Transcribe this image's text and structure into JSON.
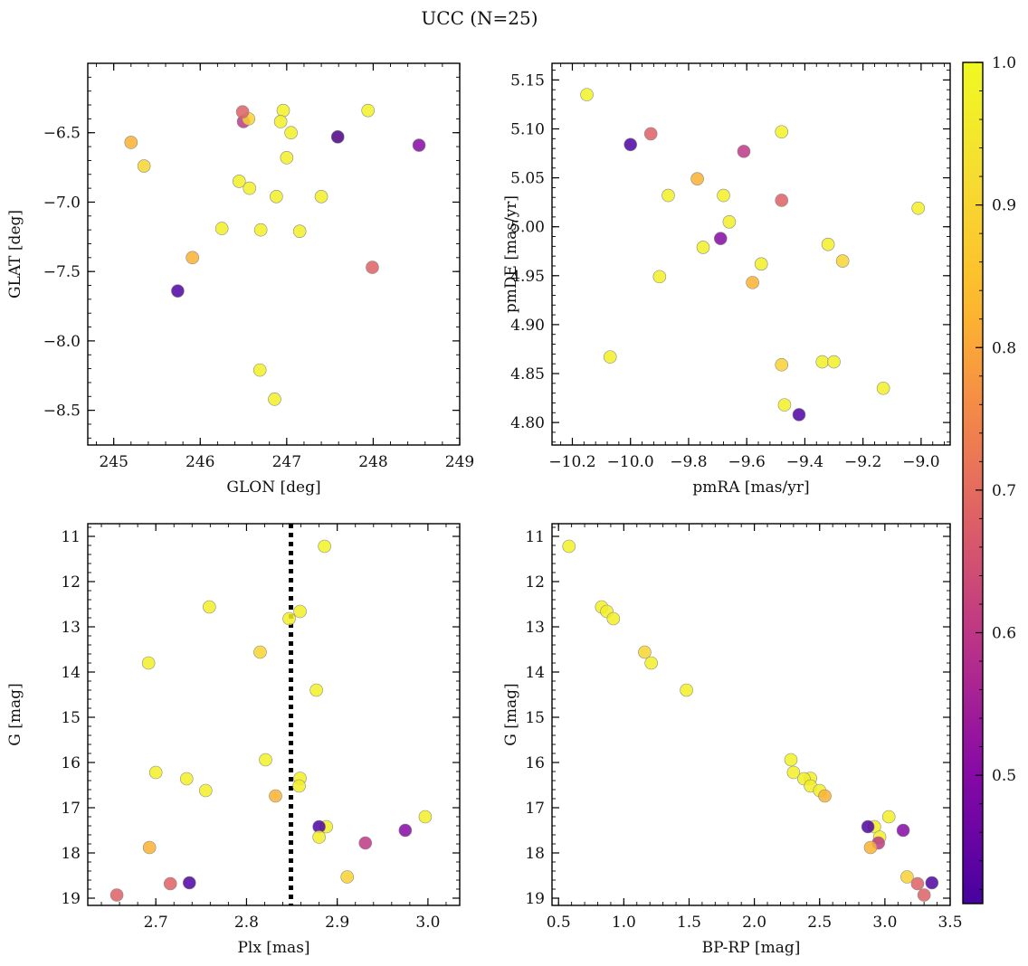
{
  "figure": {
    "title": "UCC (N=25)"
  },
  "chart_data": [
    {
      "type": "scatter",
      "xlabel": "GLON [deg]",
      "ylabel": "GLAT [deg]",
      "xlim": [
        244.7,
        249.0
      ],
      "ylim": [
        -6.0,
        -8.75
      ],
      "xticks": [
        245,
        246,
        247,
        248,
        249
      ],
      "yticks": [
        -6.5,
        -7.0,
        -7.5,
        -8.0,
        -8.5
      ],
      "xtick_labels": [
        "245",
        "246",
        "247",
        "248",
        "249"
      ],
      "ytick_labels": [
        "−6.5",
        "−7.0",
        "−7.5",
        "−8.0",
        "−8.5"
      ]
    },
    {
      "type": "scatter",
      "xlabel": "pmRA [mas/yr]",
      "ylabel": "pmDE [mas/yr]",
      "xlim": [
        -10.27,
        -8.9
      ],
      "ylim": [
        5.167,
        4.777
      ],
      "xticks": [
        -10.2,
        -10.0,
        -9.8,
        -9.6,
        -9.4,
        -9.2,
        -9.0
      ],
      "yticks": [
        5.15,
        5.1,
        5.05,
        5.0,
        4.95,
        4.9,
        4.85,
        4.8
      ],
      "xtick_labels": [
        "−10.2",
        "−10.0",
        "−9.8",
        "−9.6",
        "−9.4",
        "−9.2",
        "−9.0"
      ],
      "ytick_labels": [
        "5.15",
        "5.10",
        "5.05",
        "5.00",
        "4.95",
        "4.90",
        "4.85",
        "4.80"
      ]
    },
    {
      "type": "scatter",
      "xlabel": "Plx [mas]",
      "ylabel": "G [mag]",
      "xlim": [
        2.625,
        3.035
      ],
      "ylim": [
        10.72,
        19.16
      ],
      "xticks": [
        2.7,
        2.8,
        2.9,
        3.0
      ],
      "yticks": [
        11,
        12,
        13,
        14,
        15,
        16,
        17,
        18,
        19
      ],
      "xtick_labels": [
        "2.7",
        "2.8",
        "2.9",
        "3.0"
      ],
      "ytick_labels": [
        "11",
        "12",
        "13",
        "14",
        "15",
        "16",
        "17",
        "18",
        "19"
      ],
      "vline": 2.849
    },
    {
      "type": "scatter",
      "xlabel": "BP-RP [mag]",
      "ylabel": "G [mag]",
      "xlim": [
        0.45,
        3.5
      ],
      "ylim": [
        10.72,
        19.16
      ],
      "xticks": [
        0.5,
        1.0,
        1.5,
        2.0,
        2.5,
        3.0,
        3.5
      ],
      "yticks": [
        11,
        12,
        13,
        14,
        15,
        16,
        17,
        18,
        19
      ],
      "xtick_labels": [
        "0.5",
        "1.0",
        "1.5",
        "2.0",
        "2.5",
        "3.0",
        "3.5"
      ],
      "ytick_labels": [
        "11",
        "12",
        "13",
        "14",
        "15",
        "16",
        "17",
        "18",
        "19"
      ]
    }
  ],
  "stars": [
    {
      "glon": 247.94,
      "glat": -6.34,
      "pmra": -10.15,
      "pmde": 5.135,
      "plx": 2.886,
      "g": 11.22,
      "bprp": 0.58,
      "p": 0.98
    },
    {
      "glon": 246.25,
      "glat": -7.19,
      "pmra": -9.68,
      "pmde": 5.032,
      "plx": 2.759,
      "g": 12.56,
      "bprp": 0.83,
      "p": 0.97
    },
    {
      "glon": 247.15,
      "glat": -7.21,
      "pmra": -9.9,
      "pmde": 4.949,
      "plx": 2.859,
      "g": 12.66,
      "bprp": 0.87,
      "p": 0.97
    },
    {
      "glon": 246.57,
      "glat": -6.9,
      "pmra": -9.13,
      "pmde": 4.835,
      "plx": 2.847,
      "g": 12.82,
      "bprp": 0.92,
      "p": 0.97
    },
    {
      "glon": 245.35,
      "glat": -6.74,
      "pmra": -9.27,
      "pmde": 4.965,
      "plx": 2.815,
      "g": 13.56,
      "bprp": 1.16,
      "p": 0.9
    },
    {
      "glon": 247.0,
      "glat": -6.68,
      "pmra": -9.87,
      "pmde": 5.032,
      "plx": 2.692,
      "g": 13.8,
      "bprp": 1.21,
      "p": 0.97
    },
    {
      "glon": 246.7,
      "glat": -7.2,
      "pmra": -9.55,
      "pmde": 4.962,
      "plx": 2.877,
      "g": 14.4,
      "bprp": 1.48,
      "p": 0.97
    },
    {
      "glon": 246.96,
      "glat": -6.34,
      "pmra": -9.48,
      "pmde": 5.097,
      "plx": 2.821,
      "g": 15.94,
      "bprp": 2.28,
      "p": 0.98
    },
    {
      "glon": 246.45,
      "glat": -6.85,
      "pmra": -9.66,
      "pmde": 5.005,
      "plx": 2.7,
      "g": 16.22,
      "bprp": 2.3,
      "p": 0.97
    },
    {
      "glon": 247.05,
      "glat": -6.5,
      "pmra": -9.32,
      "pmde": 4.982,
      "plx": 2.859,
      "g": 16.35,
      "bprp": 2.43,
      "p": 0.97
    },
    {
      "glon": 246.93,
      "glat": -6.42,
      "pmra": -9.34,
      "pmde": 4.862,
      "plx": 2.734,
      "g": 16.36,
      "bprp": 2.38,
      "p": 0.97
    },
    {
      "glon": 246.88,
      "glat": -6.96,
      "pmra": -9.75,
      "pmde": 4.979,
      "plx": 2.858,
      "g": 16.52,
      "bprp": 2.43,
      "p": 0.97
    },
    {
      "glon": 247.4,
      "glat": -6.96,
      "pmra": -9.3,
      "pmde": 4.862,
      "plx": 2.755,
      "g": 16.62,
      "bprp": 2.5,
      "p": 0.97
    },
    {
      "glon": 245.2,
      "glat": -6.57,
      "pmra": -9.58,
      "pmde": 4.943,
      "plx": 2.832,
      "g": 16.74,
      "bprp": 2.54,
      "p": 0.82
    },
    {
      "glon": 246.69,
      "glat": -8.21,
      "pmra": -10.07,
      "pmde": 4.867,
      "plx": 2.997,
      "g": 17.2,
      "bprp": 3.03,
      "p": 0.97
    },
    {
      "glon": 246.86,
      "glat": -8.42,
      "pmra": -9.47,
      "pmde": 4.818,
      "plx": 2.888,
      "g": 17.42,
      "bprp": 2.92,
      "p": 0.97
    },
    {
      "glon": 245.74,
      "glat": -7.64,
      "pmra": -10.0,
      "pmde": 5.084,
      "plx": 2.88,
      "g": 17.42,
      "bprp": 2.87,
      "p": 0.42
    },
    {
      "glon": 248.53,
      "glat": -6.59,
      "pmra": -9.69,
      "pmde": 4.988,
      "plx": 2.975,
      "g": 17.5,
      "bprp": 3.14,
      "p": 0.5
    },
    {
      "glon": 247.59,
      "glat": -6.53,
      "pmra": -9.01,
      "pmde": 5.019,
      "plx": 2.88,
      "g": 17.65,
      "bprp": 2.96,
      "p": 0.97
    },
    {
      "glon": 246.5,
      "glat": -6.42,
      "pmra": -9.61,
      "pmde": 5.077,
      "plx": 2.931,
      "g": 17.78,
      "bprp": 2.95,
      "p": 0.6
    },
    {
      "glon": 245.91,
      "glat": -7.4,
      "pmra": -9.77,
      "pmde": 5.049,
      "plx": 2.693,
      "g": 17.88,
      "bprp": 2.89,
      "p": 0.82
    },
    {
      "glon": 246.56,
      "glat": -6.4,
      "pmra": -9.48,
      "pmde": 4.859,
      "plx": 2.911,
      "g": 18.53,
      "bprp": 3.17,
      "p": 0.89
    },
    {
      "glon": 246.49,
      "glat": -6.35,
      "pmra": -9.93,
      "pmde": 5.095,
      "plx": 2.716,
      "g": 18.68,
      "bprp": 3.25,
      "p": 0.68
    },
    {
      "glon": 247.99,
      "glat": -7.47,
      "pmra": -9.48,
      "pmde": 5.027,
      "plx": 2.657,
      "g": 18.93,
      "bprp": 3.3,
      "p": 0.68
    },
    {
      "glon": 247.59,
      "glat": -6.53,
      "pmra": -9.42,
      "pmde": 4.808,
      "plx": 2.737,
      "g": 18.66,
      "bprp": 3.36,
      "p": 0.42
    }
  ],
  "colorbar": {
    "min": 0.41,
    "max": 1.0,
    "ticks": [
      0.5,
      0.6,
      0.7,
      0.8,
      0.9,
      1.0
    ],
    "tick_labels": [
      "0.5",
      "0.6",
      "0.7",
      "0.8",
      "0.9",
      "1.0"
    ],
    "colormap": "plasma"
  }
}
